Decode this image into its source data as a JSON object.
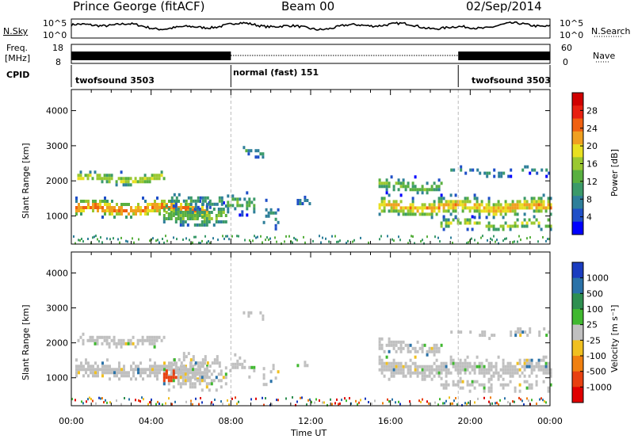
{
  "header": {
    "station": "Prince George (fitACF)",
    "beam": "Beam 00",
    "date": "02/Sep/2014"
  },
  "left_panel_labels": {
    "nsky": "N.Sky",
    "nsky_top": "10^5",
    "nsky_bottom": "10^0",
    "freq": "Freq.",
    "freq_unit": "[MHz]",
    "freq_top": "18",
    "freq_bottom": "8",
    "cpid": "CPID"
  },
  "right_panel_labels": {
    "nsearch_top": "10^5",
    "nsearch_bottom": "10^0",
    "nsearch": "N.Search",
    "nave_top": "60",
    "nave_bottom": "0",
    "nave": "Nave"
  },
  "cpid_segments": [
    {
      "label": "twofsound 3503",
      "start_hour": 0
    },
    {
      "label": "normal (fast) 151",
      "start_hour": 8
    },
    {
      "label": "twofsound 3503",
      "start_hour": 19.4
    }
  ],
  "chart_data": [
    {
      "type": "heatmap",
      "name": "power",
      "ylabel": "Slant Range [km]",
      "xlabel": "",
      "xlim": [
        0,
        24
      ],
      "ylim": [
        200,
        4600
      ],
      "yticks": [
        1000,
        2000,
        3000,
        4000
      ],
      "colorbar": {
        "label": "Power [dB]",
        "ticks": [
          4,
          8,
          12,
          16,
          20,
          24,
          28
        ],
        "range": [
          0,
          32
        ],
        "colors": [
          "#0000ff",
          "#1f4fc8",
          "#2e7f9a",
          "#3b9a6a",
          "#59b040",
          "#9ac830",
          "#e8e020",
          "#f0a020",
          "#f06010",
          "#e82010",
          "#d00000"
        ]
      }
    },
    {
      "type": "heatmap",
      "name": "velocity",
      "ylabel": "Slant Range [km]",
      "xlabel": "Time UT",
      "xlim": [
        0,
        24
      ],
      "ylim": [
        200,
        4600
      ],
      "yticks": [
        1000,
        2000,
        3000,
        4000
      ],
      "xticks": [
        "00:00",
        "04:00",
        "08:00",
        "12:00",
        "16:00",
        "20:00",
        "00:00"
      ],
      "colorbar": {
        "label": "Velocity [m s⁻¹]",
        "ticks": [
          1000,
          500,
          100,
          25,
          -25,
          -100,
          -500,
          -1000
        ],
        "colors": [
          "#1a3cc0",
          "#2a72a8",
          "#2e8f50",
          "#40b830",
          "#c0c0c0",
          "#f0c020",
          "#f08010",
          "#e84010",
          "#e00000"
        ]
      }
    }
  ]
}
